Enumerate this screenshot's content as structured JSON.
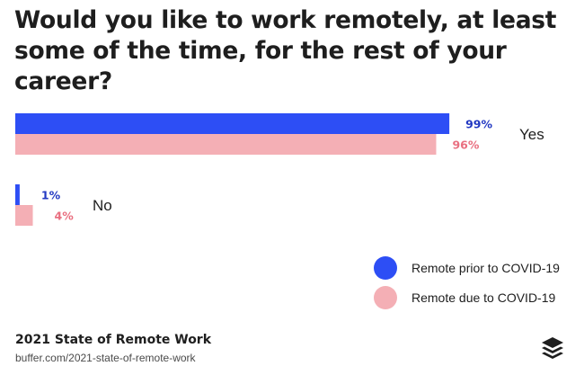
{
  "title": "Would you like to work remotely, at least some of the time, for the rest of your career?",
  "chart_data": {
    "type": "bar",
    "orientation": "horizontal",
    "categories": [
      "Yes",
      "No"
    ],
    "series": [
      {
        "name": "Remote prior to COVID-19",
        "color": "#2d4ef5",
        "values": [
          99,
          1
        ]
      },
      {
        "name": "Remote due to COVID-19",
        "color": "#f4afb5",
        "values": [
          96,
          4
        ]
      }
    ],
    "value_format": "{v}%",
    "xlim": [
      0,
      100
    ],
    "grid": false,
    "legend_position": "bottom-right"
  },
  "label_colors": [
    "#2238c2",
    "#e96f80"
  ],
  "footer": {
    "title": "2021 State of Remote Work",
    "url": "buffer.com/2021-state-of-remote-work"
  },
  "logo_icon": "buffer-stack-icon"
}
